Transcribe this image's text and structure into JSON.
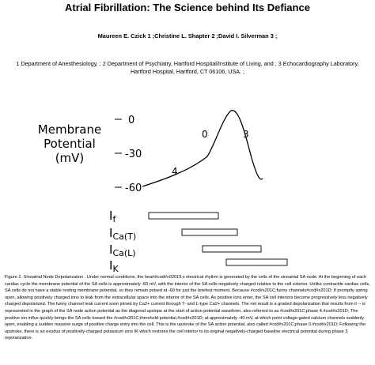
{
  "header": {
    "title": "Atrial Fibrillation: The Science behind Its Defiance",
    "authors": "Maureen E. Czick 1 ;Christine L. Shapter 2 ;David I. Silverman 3 ;",
    "affiliations": "1 Department of Anesthesiology, ; 2 Department of Psychiatry, Hartford Hospital/Institute of Living, and ; 3 Echocardiography Laboratory, Hartford Hospital, Hartford, CT 06106, USA. ;"
  },
  "figure": {
    "axis_label": [
      "Membrane",
      "Potential",
      "(mV)"
    ],
    "ticks": [
      "0",
      "-30",
      "-60"
    ],
    "phases": [
      "0",
      "3",
      "4"
    ],
    "currents": [
      {
        "main": "I",
        "sub": "f"
      },
      {
        "main": "I",
        "sub": "Ca(T)"
      },
      {
        "main": "I",
        "sub": "Ca(L)"
      },
      {
        "main": "I",
        "sub": "K"
      }
    ],
    "caption": "Figure 2.    Sinoatrial Node Depolarization . Under normal conditions, the heart#cod#x02019;s electrical rhythm is generated by the cells of the sinoatrial SA node. At the beginning of each cardiac cycle the membrane potential of the SA cells is approximately -60 mV, with the interior of the SA cells negatively charged relative to the cell exterior. Unlike contractile cardiac cells, SA cells do not have a stable resting membrane potential, so they remain poised at -60 for just the briefest moment. Because #cod#x201C;funny channels#cod#x201D; If promptly spring open, allowing positively charged ions to leak from the extracellular space into the interior of the SA cells. As positive ions enter, the SA cell interiors become progressively less negatively charged depolarized. The funny channel leak current soon joined by Ca2+ current through T- and L-type Ca2+ channels. The net result is a graded depolarization that results from it -- is represented in the graph of the SA node action potential as the diagonal upslope at the start of action potential waveform, also referred to as #cod#x201C;phase 4.#cod#x201D; The positive ion influx quickly brings the SA cells toward the #cod#x201C;threshold potential,#cod#x201D; at approximately -40 mV, at which point voltage-gated calcium channels suddenly open, enabling a sudden massive surge of positive charge entry into the cell. This is the upstroke of the SA action potential, also called #cod#x201C;phase 0.#cod#x201D; Following the upstroke, there is an exodus of positively-charged potassium ions IK which restores the cell interior to its original negatively-charged baseline electrical potential during phase 3 repolarization."
  }
}
